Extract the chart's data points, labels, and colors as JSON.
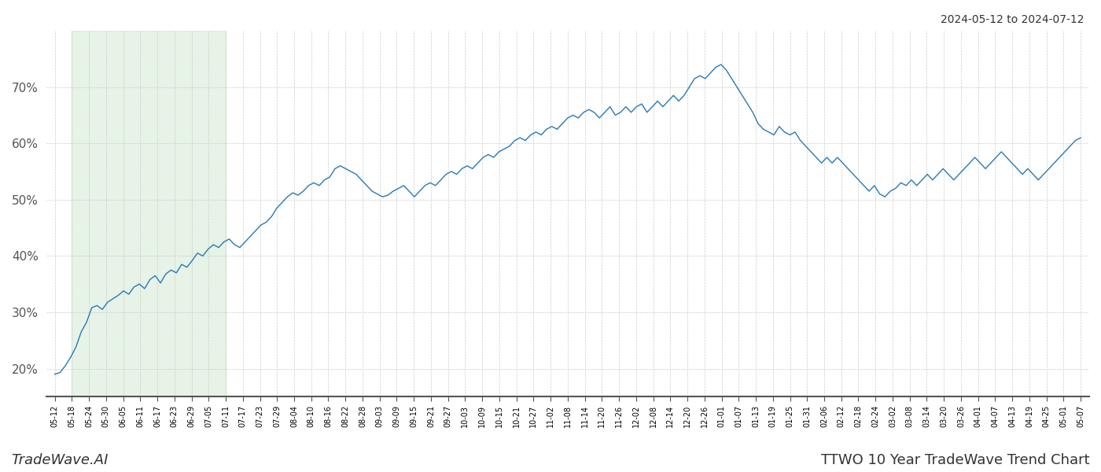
{
  "title_top_right": "2024-05-12 to 2024-07-12",
  "title_bottom_left": "TradeWave.AI",
  "title_bottom_right": "TTWO 10 Year TradeWave Trend Chart",
  "bg_color": "#ffffff",
  "line_color": "#2779b8",
  "green_shade_color": "#c8e6c8",
  "green_shade_alpha": 0.45,
  "ylim": [
    15,
    80
  ],
  "yticks": [
    20,
    30,
    40,
    50,
    60,
    70
  ],
  "xtick_labels": [
    "05-12",
    "05-18",
    "05-24",
    "05-30",
    "06-05",
    "06-11",
    "06-17",
    "06-23",
    "06-29",
    "07-05",
    "07-11",
    "07-17",
    "07-23",
    "07-29",
    "08-04",
    "08-10",
    "08-16",
    "08-22",
    "08-28",
    "09-03",
    "09-09",
    "09-15",
    "09-21",
    "09-27",
    "10-03",
    "10-09",
    "10-15",
    "10-21",
    "10-27",
    "11-02",
    "11-08",
    "11-14",
    "11-20",
    "11-26",
    "12-02",
    "12-08",
    "12-14",
    "12-20",
    "12-26",
    "01-01",
    "01-07",
    "01-13",
    "01-19",
    "01-25",
    "01-31",
    "02-06",
    "02-12",
    "02-18",
    "02-24",
    "03-02",
    "03-08",
    "03-14",
    "03-20",
    "03-26",
    "04-01",
    "04-07",
    "04-13",
    "04-19",
    "04-25",
    "05-01",
    "05-07"
  ],
  "green_shade_start_label": "05-18",
  "green_shade_end_label": "07-11",
  "values": [
    19.0,
    19.3,
    20.5,
    22.0,
    23.8,
    26.5,
    28.2,
    30.8,
    31.2,
    30.5,
    31.8,
    32.4,
    33.0,
    33.8,
    33.2,
    34.5,
    35.0,
    34.2,
    35.8,
    36.5,
    35.2,
    36.8,
    37.5,
    37.0,
    38.5,
    38.0,
    39.2,
    40.5,
    40.0,
    41.2,
    42.0,
    41.5,
    42.5,
    43.0,
    42.0,
    41.5,
    42.5,
    43.5,
    44.5,
    45.5,
    46.0,
    47.0,
    48.5,
    49.5,
    50.5,
    51.2,
    50.8,
    51.5,
    52.5,
    53.0,
    52.5,
    53.5,
    54.0,
    55.5,
    56.0,
    55.5,
    55.0,
    54.5,
    53.5,
    52.5,
    51.5,
    51.0,
    50.5,
    50.8,
    51.5,
    52.0,
    52.5,
    51.5,
    50.5,
    51.5,
    52.5,
    53.0,
    52.5,
    53.5,
    54.5,
    55.0,
    54.5,
    55.5,
    56.0,
    55.5,
    56.5,
    57.5,
    58.0,
    57.5,
    58.5,
    59.0,
    59.5,
    60.5,
    61.0,
    60.5,
    61.5,
    62.0,
    61.5,
    62.5,
    63.0,
    62.5,
    63.5,
    64.5,
    65.0,
    64.5,
    65.5,
    66.0,
    65.5,
    64.5,
    65.5,
    66.5,
    65.0,
    65.5,
    66.5,
    65.5,
    66.5,
    67.0,
    65.5,
    66.5,
    67.5,
    66.5,
    67.5,
    68.5,
    67.5,
    68.5,
    70.0,
    71.5,
    72.0,
    71.5,
    72.5,
    73.5,
    74.0,
    73.0,
    71.5,
    70.0,
    68.5,
    67.0,
    65.5,
    63.5,
    62.5,
    62.0,
    61.5,
    63.0,
    62.0,
    61.5,
    62.0,
    60.5,
    59.5,
    58.5,
    57.5,
    56.5,
    57.5,
    56.5,
    57.5,
    56.5,
    55.5,
    54.5,
    53.5,
    52.5,
    51.5,
    52.5,
    51.0,
    50.5,
    51.5,
    52.0,
    53.0,
    52.5,
    53.5,
    52.5,
    53.5,
    54.5,
    53.5,
    54.5,
    55.5,
    54.5,
    53.5,
    54.5,
    55.5,
    56.5,
    57.5,
    56.5,
    55.5,
    56.5,
    57.5,
    58.5,
    57.5,
    56.5,
    55.5,
    54.5,
    55.5,
    54.5,
    53.5,
    54.5,
    55.5,
    56.5,
    57.5,
    58.5,
    59.5,
    60.5,
    61.0
  ]
}
